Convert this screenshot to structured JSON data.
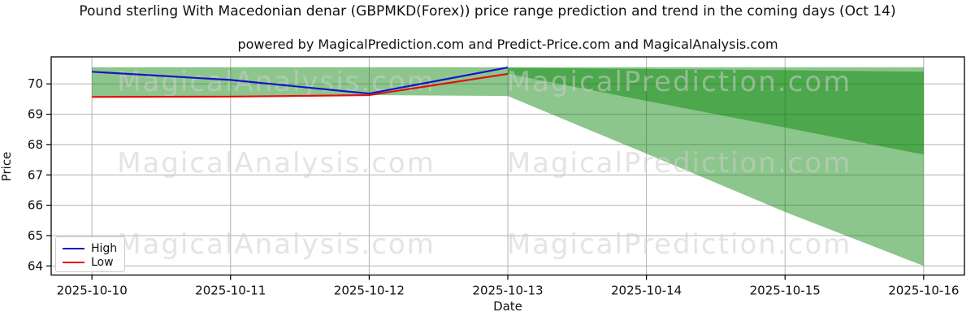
{
  "title": "Pound sterling With Macedonian denar (GBPMKD(Forex)) price range prediction and trend in the coming days (Oct 14)",
  "subtitle": "powered by MagicalPrediction.com and Predict-Price.com and MagicalAnalysis.com",
  "xlabel": "Date",
  "ylabel": "Price",
  "legend": {
    "high_label": "High",
    "low_label": "Low"
  },
  "watermarks": {
    "left_text": "MagicalAnalysis.com",
    "right_text": "MagicalPrediction.com"
  },
  "colors": {
    "high_line": "#1414cc",
    "low_line": "#e01010",
    "band_fill": "rgba(0,128,0,0.45)",
    "grid": "#b3b3b3",
    "frame": "#000000",
    "tick_text": "#111111",
    "watermark": "rgba(205,205,205,0.55)"
  },
  "chart_data": {
    "type": "line",
    "title": "Pound sterling With Macedonian denar (GBPMKD(Forex)) price range prediction and trend in the coming days (Oct 14)",
    "xlabel": "Date",
    "ylabel": "Price",
    "x": [
      "2025-10-10",
      "2025-10-11",
      "2025-10-12",
      "2025-10-13",
      "2025-10-14",
      "2025-10-15",
      "2025-10-16"
    ],
    "series": [
      {
        "name": "High",
        "color": "#1414cc",
        "values": [
          70.4,
          70.13,
          69.68,
          70.54,
          null,
          null,
          null
        ]
      },
      {
        "name": "Low",
        "color": "#e01010",
        "values": [
          69.57,
          69.58,
          69.63,
          70.33,
          null,
          null,
          null
        ]
      }
    ],
    "bands": [
      {
        "name": "outer-range-band",
        "top": [
          70.55,
          70.55,
          70.55,
          70.55,
          70.55,
          70.55,
          70.55
        ],
        "bottom": [
          69.57,
          69.58,
          69.63,
          69.6,
          67.7,
          65.78,
          64.0
        ]
      },
      {
        "name": "forecast-band",
        "top": [
          null,
          null,
          null,
          70.53,
          70.49,
          70.45,
          70.4
        ],
        "bottom": [
          null,
          null,
          null,
          70.33,
          69.44,
          68.56,
          67.67
        ]
      }
    ],
    "ylim": [
      63.7,
      70.89
    ],
    "yticks": [
      64,
      65,
      66,
      67,
      68,
      69,
      70
    ],
    "grid": true,
    "legend_position": "lower left"
  }
}
